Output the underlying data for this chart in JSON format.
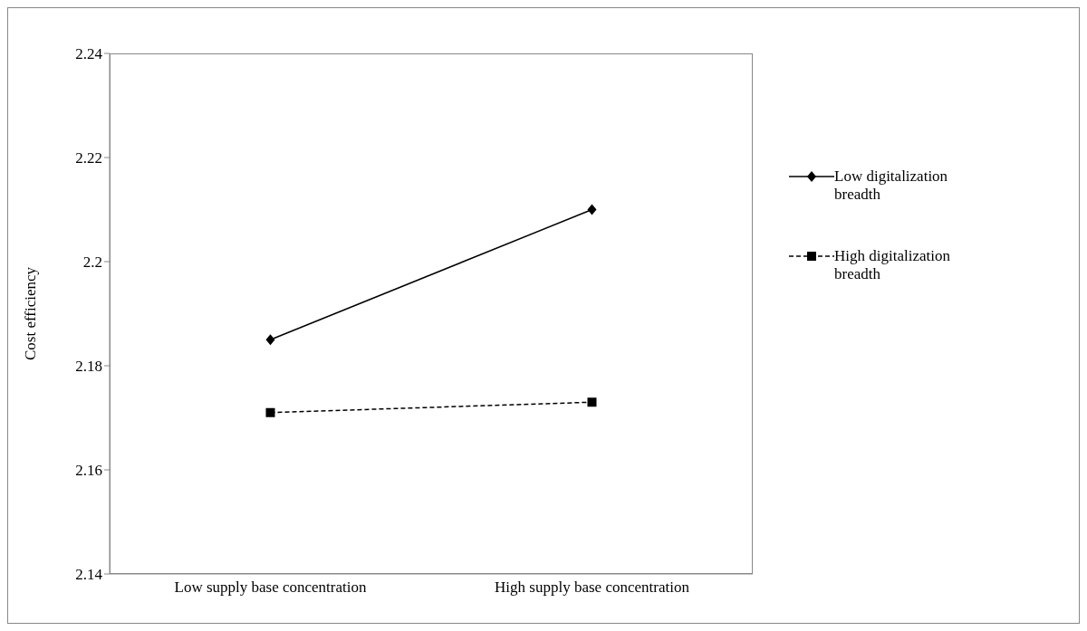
{
  "chart_data": {
    "type": "line",
    "ylabel": "Cost efficiency",
    "categories": [
      "Low supply base concentration",
      "High supply base concentration"
    ],
    "series": [
      {
        "name": "Low digitalization breadth",
        "color": "#000000",
        "values": [
          2.185,
          2.21
        ],
        "marker": "diamond",
        "line_style": "solid"
      },
      {
        "name": "High digitalization breadth",
        "color": "#000000",
        "values": [
          2.171,
          2.173
        ],
        "marker": "square",
        "line_style": "dashed"
      }
    ],
    "ylim": [
      2.14,
      2.24
    ],
    "yticks": [
      2.14,
      2.16,
      2.18,
      2.2,
      2.22,
      2.24
    ],
    "grid": false,
    "legend": "right"
  }
}
